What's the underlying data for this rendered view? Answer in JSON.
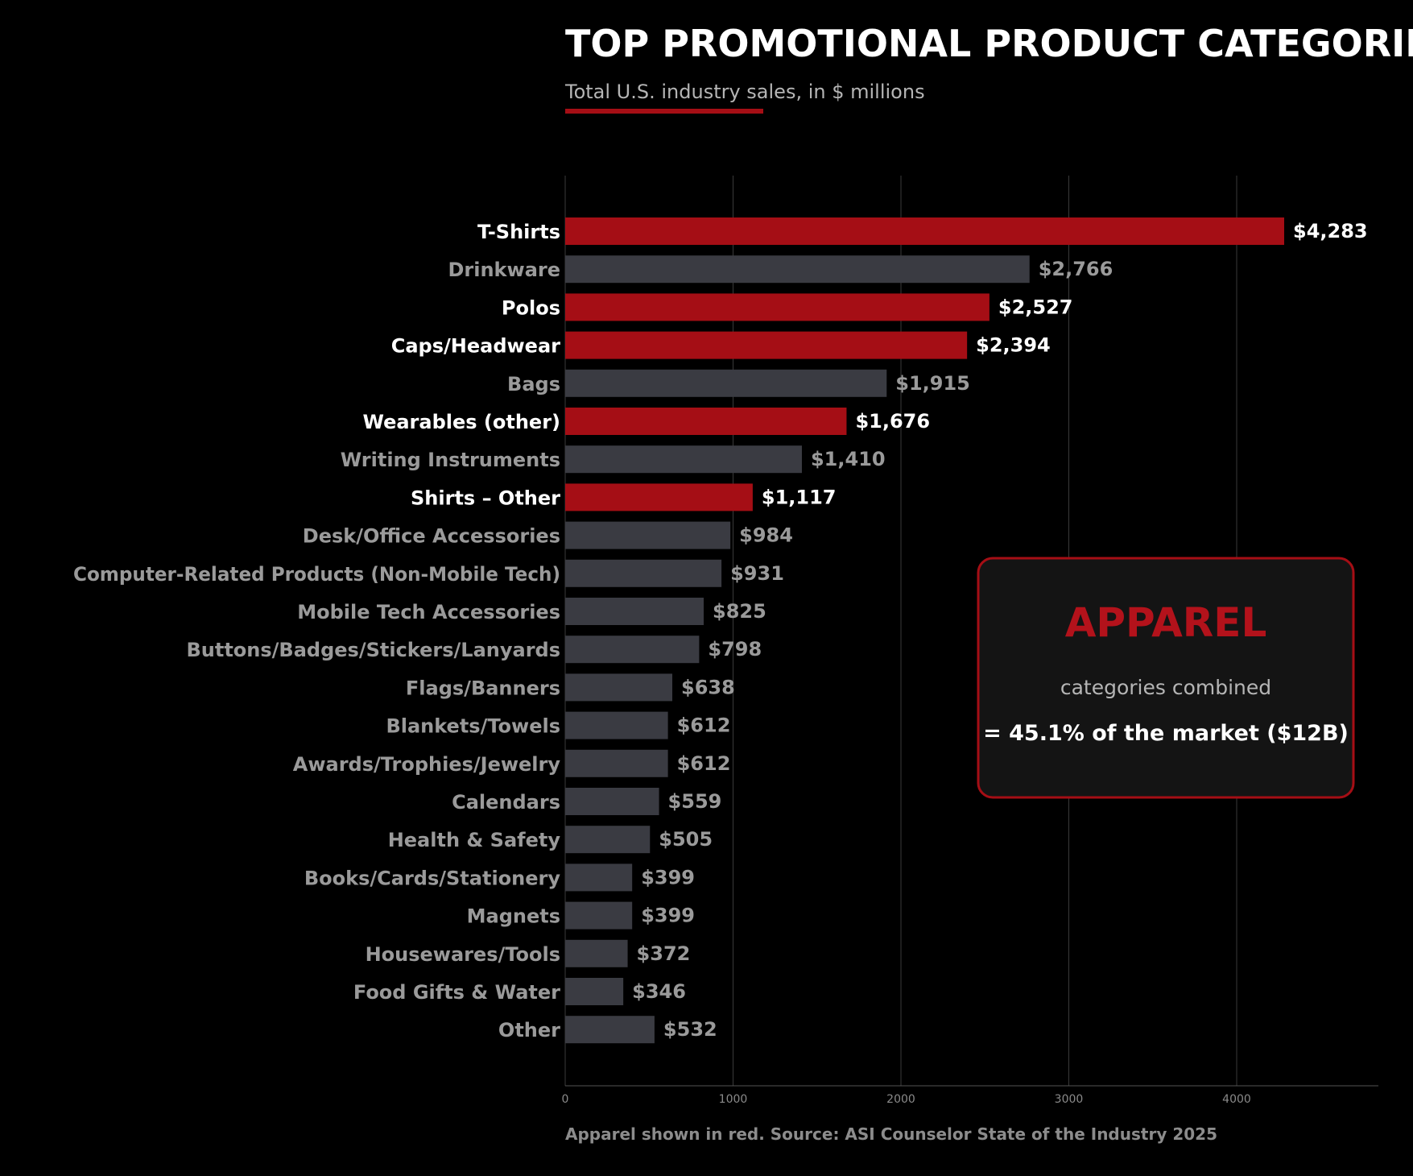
{
  "colors": {
    "background": "#000000",
    "apparel": "#a50e15",
    "other": "#3a3b42",
    "grid": "#3a3a3a",
    "label_highlight": "#ffffff",
    "label_muted": "#9a9a9a",
    "callout_bg": "#141414",
    "callout_border": "#a50e15",
    "callout_title": "#b3121b"
  },
  "chart_data": {
    "type": "bar",
    "orientation": "horizontal",
    "title": "TOP PROMOTIONAL PRODUCT CATEGORIES",
    "subtitle": "Total U.S. industry sales, in $ millions",
    "footnote": "Apparel shown in red. Source: ASI Counselor State of the Industry 2025",
    "xlim": [
      0,
      4800
    ],
    "x_ticks": [
      0,
      1000,
      2000,
      3000,
      4000
    ],
    "x_tick_labels": [
      "0",
      "1000",
      "2000",
      "3000",
      "4000"
    ],
    "grid": true,
    "categories": [
      "T-Shirts",
      "Drinkware",
      "Polos",
      "Caps/Headwear",
      "Bags",
      "Wearables (other)",
      "Writing Instruments",
      "Shirts – Other",
      "Desk/Office Accessories",
      "Computer-Related Products (Non-Mobile Tech)",
      "Mobile Tech Accessories",
      "Buttons/Badges/Stickers/Lanyards",
      "Flags/Banners",
      "Blankets/Towels",
      "Awards/Trophies/Jewelry",
      "Calendars",
      "Health & Safety",
      "Books/Cards/Stationery",
      "Magnets",
      "Housewares/Tools",
      "Food Gifts & Water",
      "Other"
    ],
    "values": [
      4283,
      2766,
      2527,
      2394,
      1915,
      1676,
      1410,
      1117,
      984,
      931,
      825,
      798,
      638,
      612,
      612,
      559,
      505,
      399,
      399,
      372,
      346,
      532
    ],
    "value_labels": [
      "$4,283",
      "$2,766",
      "$2,527",
      "$2,394",
      "$1,915",
      "$1,676",
      "$1,410",
      "$1,117",
      "$984",
      "$931",
      "$825",
      "$798",
      "$638",
      "$612",
      "$612",
      "$559",
      "$505",
      "$399",
      "$399",
      "$372",
      "$346",
      "$532"
    ],
    "apparel": [
      true,
      false,
      true,
      true,
      false,
      true,
      false,
      true,
      false,
      false,
      false,
      false,
      false,
      false,
      false,
      false,
      false,
      false,
      false,
      false,
      false,
      false
    ],
    "callout": {
      "title": "APPAREL",
      "line1": "categories combined",
      "line2": "= 45.1% of the market  ($12B)"
    }
  }
}
